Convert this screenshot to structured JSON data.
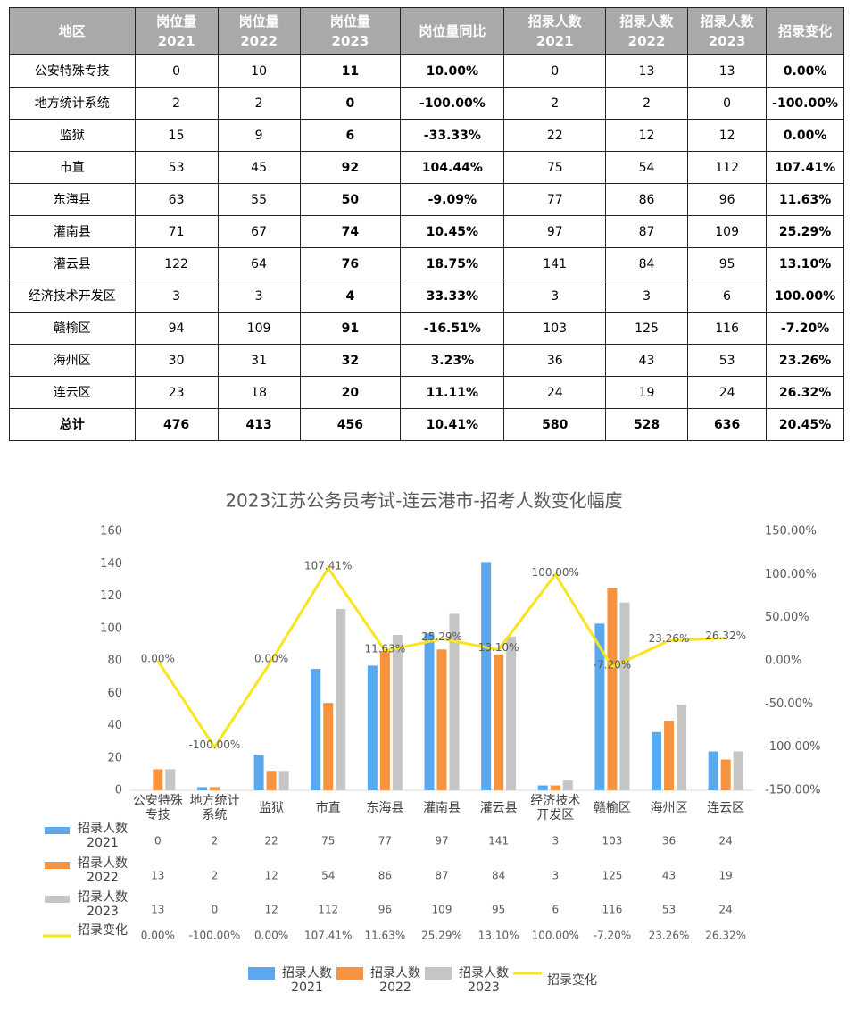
{
  "table": {
    "header": [
      "地区",
      "岗位量\n2021",
      "岗位量\n2022",
      "岗位量\n2023",
      "岗位量同比",
      "招录人数\n2021",
      "招录人数\n2022",
      "招录人数\n2023",
      "招录变化"
    ],
    "rows": [
      [
        "公安特殊专技",
        "0",
        "10",
        "11",
        "10.00%",
        "0",
        "13",
        "13",
        "0.00%"
      ],
      [
        "地方统计系统",
        "2",
        "2",
        "0",
        "-100.00%",
        "2",
        "2",
        "0",
        "-100.00%"
      ],
      [
        "监狱",
        "15",
        "9",
        "6",
        "-33.33%",
        "22",
        "12",
        "12",
        "0.00%"
      ],
      [
        "市直",
        "53",
        "45",
        "92",
        "104.44%",
        "75",
        "54",
        "112",
        "107.41%"
      ],
      [
        "东海县",
        "63",
        "55",
        "50",
        "-9.09%",
        "77",
        "86",
        "96",
        "11.63%"
      ],
      [
        "灌南县",
        "71",
        "67",
        "74",
        "10.45%",
        "97",
        "87",
        "109",
        "25.29%"
      ],
      [
        "灌云县",
        "122",
        "64",
        "76",
        "18.75%",
        "141",
        "84",
        "95",
        "13.10%"
      ],
      [
        "经济技术开发区",
        "3",
        "3",
        "4",
        "33.33%",
        "3",
        "3",
        "6",
        "100.00%"
      ],
      [
        "赣榆区",
        "94",
        "109",
        "91",
        "-16.51%",
        "103",
        "125",
        "116",
        "-7.20%"
      ],
      [
        "海州区",
        "30",
        "31",
        "32",
        "3.23%",
        "36",
        "43",
        "53",
        "23.26%"
      ],
      [
        "连云区",
        "23",
        "18",
        "20",
        "11.11%",
        "24",
        "19",
        "24",
        "26.32%"
      ],
      [
        "总计",
        "476",
        "413",
        "456",
        "10.41%",
        "580",
        "528",
        "636",
        "20.45%"
      ]
    ]
  },
  "chart_data": {
    "type": "bar",
    "title": "2023江苏公务员考试-连云港市-招考人数变化幅度",
    "categories": [
      "公安特殊\n专技",
      "地方统计\n系统",
      "监狱",
      "市直",
      "东海县",
      "灌南县",
      "灌云县",
      "经济技术\n开发区",
      "赣榆区",
      "海州区",
      "连云区"
    ],
    "series": [
      {
        "name": "招录人数\n2021",
        "color": "#5aa9f0",
        "values": [
          0,
          2,
          22,
          75,
          77,
          97,
          141,
          3,
          103,
          36,
          24
        ]
      },
      {
        "name": "招录人数\n2022",
        "color": "#f59340",
        "values": [
          13,
          2,
          12,
          54,
          86,
          87,
          84,
          3,
          125,
          43,
          19
        ]
      },
      {
        "name": "招录人数\n2023",
        "color": "#c5c5c5",
        "values": [
          13,
          0,
          12,
          112,
          96,
          109,
          95,
          6,
          116,
          53,
          24
        ]
      },
      {
        "name": "招录变化",
        "color": "#f9e51e",
        "type": "line",
        "axis": "y2",
        "values": [
          0,
          -100,
          0,
          107.41,
          11.63,
          25.29,
          13.1,
          100,
          -7.2,
          23.26,
          26.32
        ],
        "value_labels": [
          "0.00%",
          "-100.00%",
          "0.00%",
          "107.41%",
          "11.63%",
          "25.29%",
          "13.10%",
          "100.00%",
          "-7.20%",
          "23.26%",
          "26.32%"
        ]
      }
    ],
    "ylim": [
      0,
      160
    ],
    "yticks": [
      0,
      20,
      40,
      60,
      80,
      100,
      120,
      140,
      160
    ],
    "y2lim": [
      -150,
      150
    ],
    "y2ticks": [
      {
        "value": -150,
        "label": "-150.00%"
      },
      {
        "value": -100,
        "label": "-100.00%"
      },
      {
        "value": -50,
        "label": "-50.00%"
      },
      {
        "value": 0,
        "label": "0.00%"
      },
      {
        "value": 50,
        "label": "50.00%"
      },
      {
        "value": 100,
        "label": "100.00%"
      },
      {
        "value": 150,
        "label": "150.00%"
      }
    ],
    "legend": "bottom"
  }
}
